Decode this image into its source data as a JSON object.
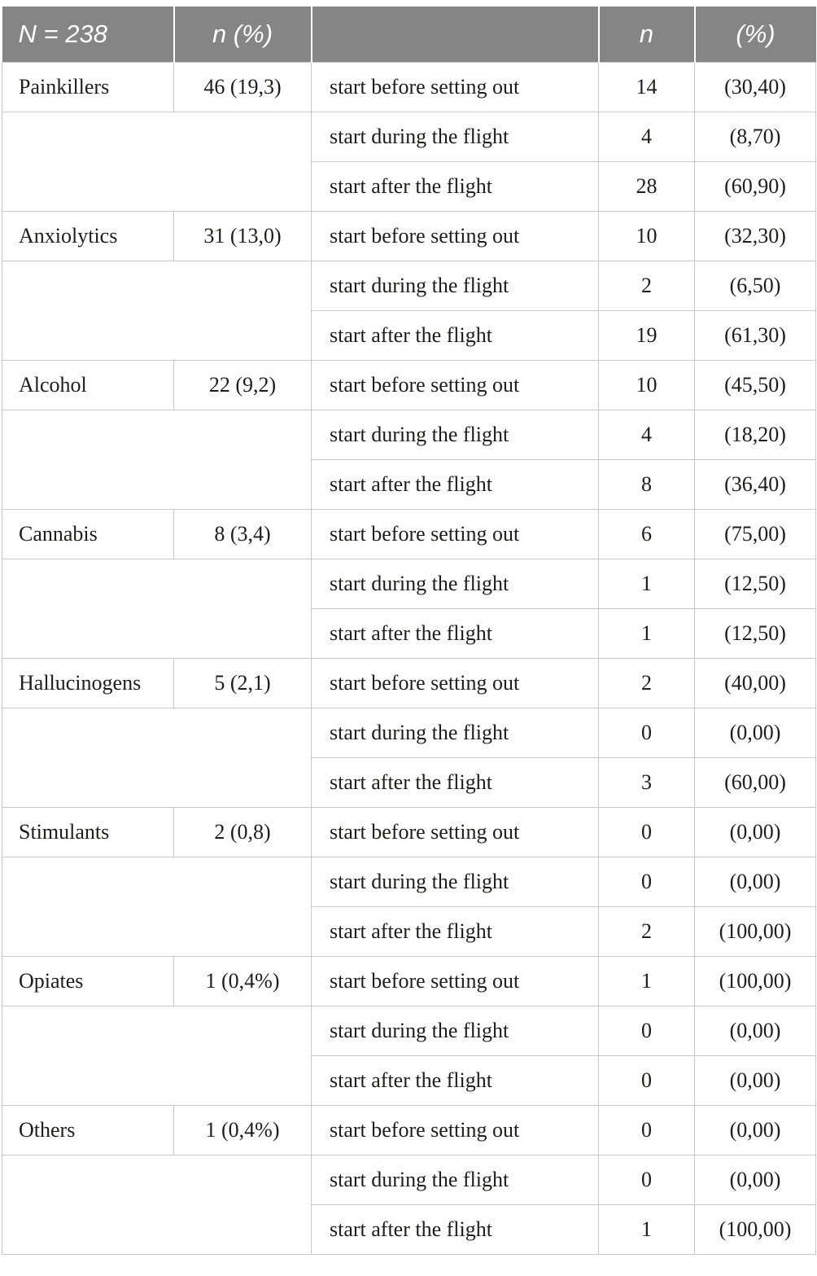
{
  "table": {
    "style": {
      "header_bg": "#858585",
      "header_text_color": "#ffffff",
      "border_color": "#c8c8c8",
      "body_text_color": "#1d1d1b"
    },
    "header": {
      "total_label": "N = 238",
      "n_pct_label": "n (%)",
      "timing_label": "",
      "n_label": "n",
      "pct_label": "(%)"
    },
    "groups": [
      {
        "name": "Painkillers",
        "total": "46 (19,3)",
        "rows": [
          {
            "label": "start before setting out",
            "n": "14",
            "pct": "(30,40)"
          },
          {
            "label": "start during the flight",
            "n": "4",
            "pct": "(8,70)"
          },
          {
            "label": "start after the flight",
            "n": "28",
            "pct": "(60,90)"
          }
        ]
      },
      {
        "name": "Anxiolytics",
        "total": "31 (13,0)",
        "rows": [
          {
            "label": "start before setting out",
            "n": "10",
            "pct": "(32,30)"
          },
          {
            "label": "start during the flight",
            "n": "2",
            "pct": "(6,50)"
          },
          {
            "label": "start after the flight",
            "n": "19",
            "pct": "(61,30)"
          }
        ]
      },
      {
        "name": "Alcohol",
        "total": "22 (9,2)",
        "rows": [
          {
            "label": "start before setting out",
            "n": "10",
            "pct": "(45,50)"
          },
          {
            "label": "start during the flight",
            "n": "4",
            "pct": "(18,20)"
          },
          {
            "label": "start after the flight",
            "n": "8",
            "pct": "(36,40)"
          }
        ]
      },
      {
        "name": "Cannabis",
        "total": "8 (3,4)",
        "rows": [
          {
            "label": "start before setting out",
            "n": "6",
            "pct": "(75,00)"
          },
          {
            "label": "start during the flight",
            "n": "1",
            "pct": "(12,50)"
          },
          {
            "label": "start after the flight",
            "n": "1",
            "pct": "(12,50)"
          }
        ]
      },
      {
        "name": "Hallucinogens",
        "total": "5 (2,1)",
        "rows": [
          {
            "label": "start before setting out",
            "n": "2",
            "pct": "(40,00)"
          },
          {
            "label": "start during the flight",
            "n": "0",
            "pct": "(0,00)"
          },
          {
            "label": "start after the flight",
            "n": "3",
            "pct": "(60,00)"
          }
        ]
      },
      {
        "name": "Stimulants",
        "total": "2 (0,8)",
        "rows": [
          {
            "label": "start before setting out",
            "n": "0",
            "pct": "(0,00)"
          },
          {
            "label": "start during the flight",
            "n": "0",
            "pct": "(0,00)"
          },
          {
            "label": "start after the flight",
            "n": "2",
            "pct": "(100,00)"
          }
        ]
      },
      {
        "name": "Opiates",
        "total": "1 (0,4%)",
        "rows": [
          {
            "label": "start before setting out",
            "n": "1",
            "pct": "(100,00)"
          },
          {
            "label": "start during the flight",
            "n": "0",
            "pct": "(0,00)"
          },
          {
            "label": "start after the flight",
            "n": "0",
            "pct": "(0,00)"
          }
        ]
      },
      {
        "name": "Others",
        "total": "1 (0,4%)",
        "rows": [
          {
            "label": "start before setting out",
            "n": "0",
            "pct": "(0,00)"
          },
          {
            "label": "start during the flight",
            "n": "0",
            "pct": "(0,00)"
          },
          {
            "label": "start after the flight",
            "n": "1",
            "pct": "(100,00)"
          }
        ]
      }
    ]
  }
}
